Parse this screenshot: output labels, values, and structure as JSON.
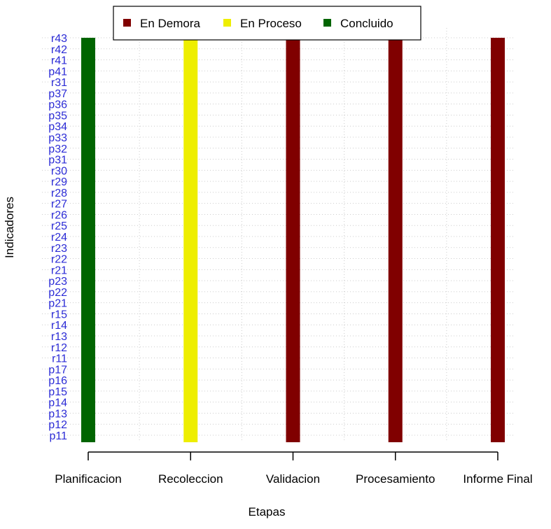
{
  "chart_data": {
    "type": "bar",
    "xlabel": "Etapas",
    "ylabel": "Indicadores",
    "categories": [
      "Planificacion",
      "Recoleccion",
      "Validacion",
      "Procesamiento",
      "Informe Final"
    ],
    "indicators": [
      "p11",
      "p12",
      "p13",
      "p14",
      "p15",
      "p16",
      "p17",
      "r11",
      "r12",
      "r13",
      "r14",
      "r15",
      "p21",
      "p22",
      "p23",
      "r21",
      "r22",
      "r23",
      "r24",
      "r25",
      "r26",
      "r27",
      "r28",
      "r29",
      "r30",
      "p31",
      "p32",
      "p33",
      "p34",
      "p35",
      "p36",
      "p37",
      "r31",
      "p41",
      "r41",
      "r42",
      "r43"
    ],
    "status": [
      "Concluido",
      "En Proceso",
      "En Demora",
      "En Demora",
      "En Demora"
    ],
    "legend": {
      "position": "top",
      "entries": [
        {
          "label": "En Demora",
          "color": "#800000"
        },
        {
          "label": "En Proceso",
          "color": "#eeee00"
        },
        {
          "label": "Concluido",
          "color": "#006400"
        }
      ]
    },
    "grid": true
  }
}
